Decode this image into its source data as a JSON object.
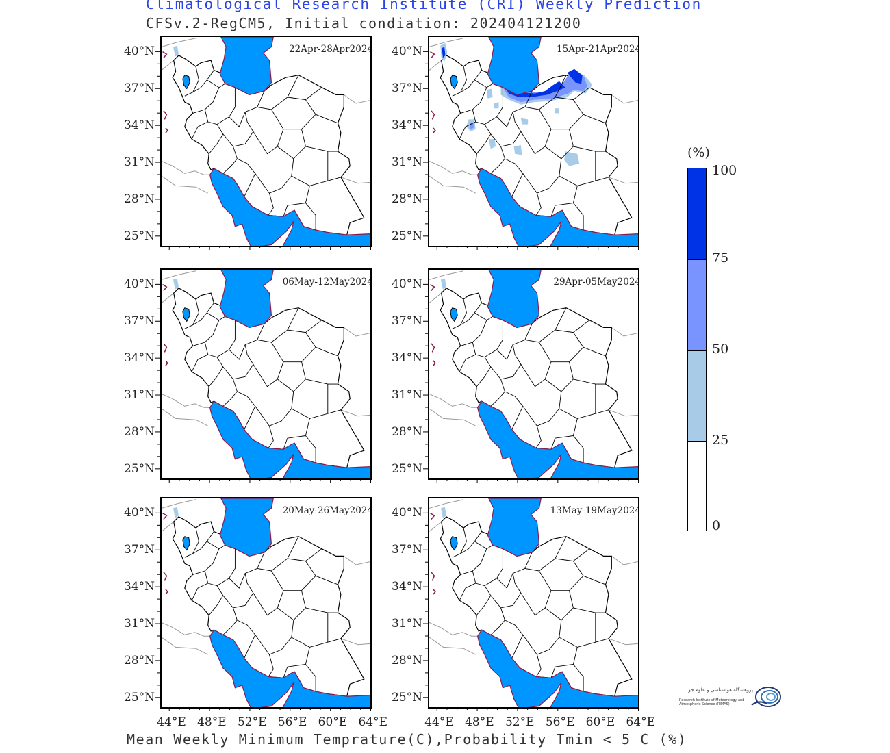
{
  "header": {
    "title": "Climatological Research Institute (CRI) Weekly Prediction",
    "subtitle": "CFSv.2-RegCM5, Initial condiation: 202404121200"
  },
  "footer": {
    "caption": "Mean Weekly Minimum Temprature(C),Probability Tmin < 5 C (%)"
  },
  "axes": {
    "lat_labels": [
      "40°N",
      "37°N",
      "34°N",
      "31°N",
      "28°N",
      "25°N"
    ],
    "lon_labels": [
      "44°E",
      "48°E",
      "52°E",
      "56°E",
      "60°E",
      "64°E"
    ]
  },
  "colorbar": {
    "unit": "(%)",
    "ticks": [
      "100",
      "75",
      "50",
      "25",
      "0"
    ],
    "colors": [
      "#0033e6",
      "#7a94ff",
      "#a8cce8",
      "#ffffff"
    ]
  },
  "colors": {
    "sea": "#0096ff",
    "border": "#000000",
    "coast": "#8b1a4a",
    "neighbor": "#999999"
  },
  "panels": [
    {
      "id": "p1",
      "period": "22Apr-28Apr2024",
      "cold_level": 0
    },
    {
      "id": "p2",
      "period": "15Apr-21Apr2024",
      "cold_level": 3
    },
    {
      "id": "p3",
      "period": "06May-12May2024",
      "cold_level": 0
    },
    {
      "id": "p4",
      "period": "29Apr-05May2024",
      "cold_level": 0
    },
    {
      "id": "p5",
      "period": "20May-26May2024",
      "cold_level": 0
    },
    {
      "id": "p6",
      "period": "13May-19May2024",
      "cold_level": 0
    }
  ],
  "logo": {
    "name_fa": "پژوهشگاه هواشناسی و علوم جو",
    "name_en": "Research Institute of Meteorology and Atmospheric Science (RIMAS)"
  }
}
